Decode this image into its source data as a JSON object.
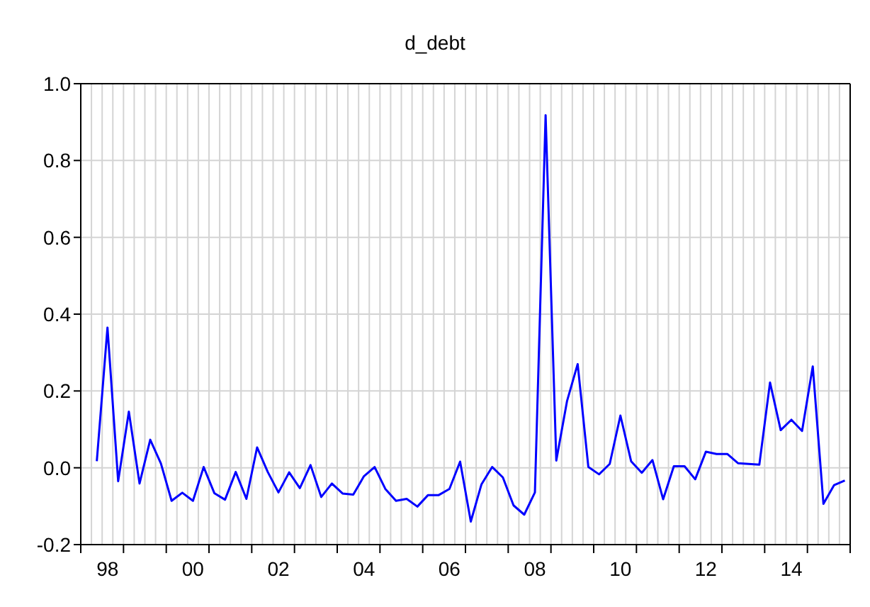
{
  "chart_data": {
    "type": "line",
    "title": "d_debt",
    "categories": [
      null,
      "98",
      null,
      null,
      null,
      null,
      null,
      null,
      null,
      "00",
      null,
      null,
      null,
      null,
      null,
      null,
      null,
      "02",
      null,
      null,
      null,
      null,
      null,
      null,
      null,
      "04",
      null,
      null,
      null,
      null,
      null,
      null,
      null,
      "06",
      null,
      null,
      null,
      null,
      null,
      null,
      null,
      "08",
      null,
      null,
      null,
      null,
      null,
      null,
      null,
      "10",
      null,
      null,
      null,
      null,
      null,
      null,
      null,
      "12",
      null,
      null,
      null,
      null,
      null,
      null,
      null,
      "14",
      null,
      null,
      null,
      null,
      null
    ],
    "series": [
      {
        "color": "#0000ff",
        "values": [
          0.017,
          0.365,
          -0.035,
          0.146,
          -0.041,
          0.073,
          0.011,
          -0.086,
          -0.065,
          -0.086,
          0.002,
          -0.066,
          -0.083,
          -0.011,
          -0.081,
          0.053,
          -0.011,
          -0.064,
          -0.012,
          -0.053,
          0.007,
          -0.076,
          -0.041,
          -0.067,
          -0.07,
          -0.022,
          0.002,
          -0.055,
          -0.086,
          -0.081,
          -0.101,
          -0.071,
          -0.071,
          -0.055,
          0.016,
          -0.14,
          -0.043,
          0.002,
          -0.025,
          -0.098,
          -0.122,
          -0.064,
          0.918,
          0.019,
          0.173,
          0.27,
          0.002,
          -0.017,
          0.01,
          0.136,
          0.017,
          -0.013,
          0.02,
          -0.082,
          0.004,
          0.004,
          -0.03,
          0.042,
          0.036,
          0.036,
          0.012,
          0.01,
          0.008,
          0.222,
          0.098,
          0.125,
          0.096,
          0.264,
          -0.094,
          -0.045,
          -0.033
        ]
      }
    ],
    "ylim": [
      -0.2,
      1.0
    ],
    "yticks": [
      -0.2,
      {
        "value": 0,
        "label": "0.0"
      },
      0.2,
      0.4,
      0.6,
      0.8,
      {
        "value": 1,
        "label": "1.0"
      }
    ],
    "grid": true,
    "marker": "none",
    "line_style": "solid"
  }
}
